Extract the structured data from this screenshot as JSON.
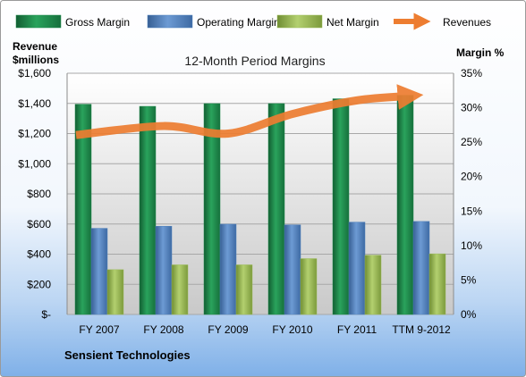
{
  "chart_data": {
    "type": "bar",
    "title": "12-Month Period Margins",
    "company": "Sensient Technologies",
    "left_axis_label": [
      "Revenue",
      "$millions"
    ],
    "right_axis_label": "Margin %",
    "categories": [
      "FY 2007",
      "FY 2008",
      "FY 2009",
      "FY 2010",
      "FY 2011",
      "TTM 9-2012"
    ],
    "left_axis": {
      "min": 0,
      "max": 1600,
      "step": 200,
      "tick_labels": [
        "$-",
        "$200",
        "$400",
        "$600",
        "$800",
        "$1,000",
        "$1,200",
        "$1,400",
        "$1,600"
      ]
    },
    "right_axis": {
      "min": 0,
      "max": 35,
      "step": 5,
      "tick_labels": [
        "0%",
        "5%",
        "10%",
        "15%",
        "20%",
        "25%",
        "30%",
        "35%"
      ]
    },
    "series": [
      {
        "name": "Gross Margin",
        "axis": "right",
        "color": "#1e8a4c",
        "values": [
          30.5,
          30.2,
          30.6,
          30.6,
          31.3,
          31.8
        ]
      },
      {
        "name": "Operating Margin",
        "axis": "right",
        "color": "#4f81bd",
        "values": [
          12.5,
          12.8,
          13.1,
          13.0,
          13.4,
          13.5
        ]
      },
      {
        "name": "Net Margin",
        "axis": "right",
        "color": "#9bbb59",
        "values": [
          6.5,
          7.2,
          7.2,
          8.1,
          8.6,
          8.8
        ]
      },
      {
        "name": "Revenues",
        "axis": "left",
        "type": "line",
        "color": "#ed7d31",
        "values": [
          1190,
          1250,
          1200,
          1330,
          1420,
          1450
        ]
      }
    ],
    "grid": true,
    "legend_position": "top"
  }
}
